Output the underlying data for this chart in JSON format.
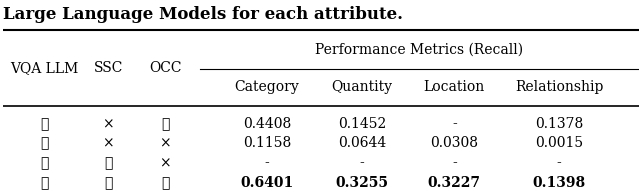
{
  "title_top": "Large Language Models for each attribute.",
  "col_groups": {
    "left_cols": [
      "VQA LLM",
      "SSC",
      "OCC"
    ],
    "right_group_label": "Performance Metrics (Recall)",
    "right_cols": [
      "Category",
      "Quantity",
      "Location",
      "Relationship"
    ]
  },
  "rows": [
    [
      "✓",
      "×",
      "✓",
      "0.4408",
      "0.1452",
      "-",
      "0.1378"
    ],
    [
      "✓",
      "×",
      "×",
      "0.1158",
      "0.0644",
      "0.0308",
      "0.0015"
    ],
    [
      "✓",
      "✓",
      "×",
      "-",
      "-",
      "-",
      "-"
    ],
    [
      "✓",
      "✓",
      "✓",
      "0.6401",
      "0.3255",
      "0.3227",
      "0.1398"
    ]
  ],
  "last_row_bold": true,
  "bg_color": "white",
  "text_color": "black",
  "font_size": 10,
  "header_font_size": 10
}
